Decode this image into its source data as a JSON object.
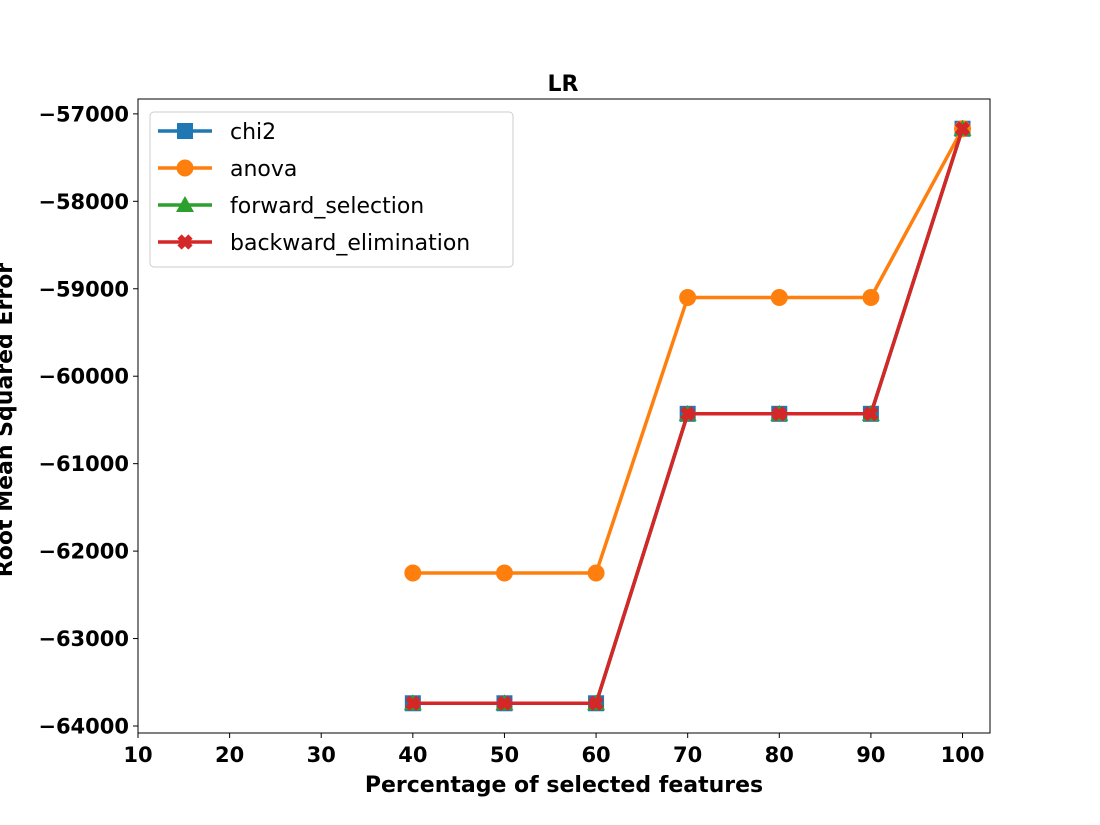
{
  "chart_data": {
    "type": "line",
    "title": "LR",
    "xlabel": "Percentage of selected features",
    "ylabel": "Root Mean Squared Error",
    "xlim": [
      10,
      103
    ],
    "ylim": [
      -64080,
      -56830
    ],
    "x_ticks": [
      10,
      20,
      30,
      40,
      50,
      60,
      70,
      80,
      90,
      100
    ],
    "y_ticks": [
      -57000,
      -58000,
      -59000,
      -60000,
      -61000,
      -62000,
      -63000,
      -64000
    ],
    "y_tick_labels": [
      "−57000",
      "−58000",
      "−59000",
      "−60000",
      "−61000",
      "−62000",
      "−63000",
      "−64000"
    ],
    "x": [
      40,
      50,
      60,
      70,
      80,
      90,
      100
    ],
    "series": [
      {
        "name": "chi2",
        "color": "#1f77b4",
        "marker": "square",
        "values": [
          -63740,
          -63740,
          -63740,
          -60430,
          -60430,
          -60430,
          -57170
        ]
      },
      {
        "name": "anova",
        "color": "#ff7f0e",
        "marker": "circle",
        "values": [
          -62250,
          -62250,
          -62250,
          -59100,
          -59100,
          -59100,
          -57170
        ]
      },
      {
        "name": "forward_selection",
        "color": "#2ca02c",
        "marker": "triangle",
        "values": [
          -63740,
          -63740,
          -63740,
          -60430,
          -60430,
          -60430,
          -57170
        ]
      },
      {
        "name": "backward_elimination",
        "color": "#d62728",
        "marker": "x",
        "values": [
          -63740,
          -63740,
          -63740,
          -60430,
          -60430,
          -60430,
          -57170
        ]
      }
    ],
    "grid": false,
    "legend_position": "upper-left"
  }
}
